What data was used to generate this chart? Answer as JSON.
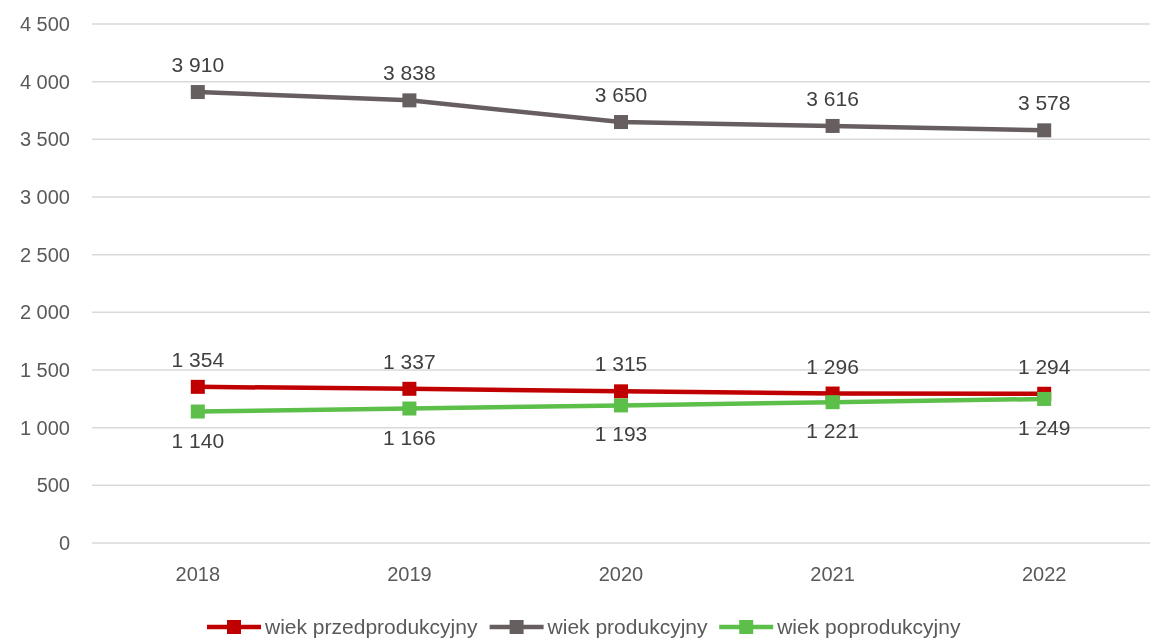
{
  "chart_data": {
    "type": "line",
    "categories": [
      "2018",
      "2019",
      "2020",
      "2021",
      "2022"
    ],
    "series": [
      {
        "name": "wiek przedprodukcyjny",
        "color": "#c00000",
        "values": [
          1354,
          1337,
          1315,
          1296,
          1294
        ],
        "value_labels": [
          "1 354",
          "1 337",
          "1 315",
          "1 296",
          "1 294"
        ]
      },
      {
        "name": "wiek produkcyjny",
        "color": "#675e60",
        "values": [
          3910,
          3838,
          3650,
          3616,
          3578
        ],
        "value_labels": [
          "3 910",
          "3 838",
          "3 650",
          "3 616",
          "3 578"
        ]
      },
      {
        "name": "wiek poprodukcyjny",
        "color": "#5cbf4a",
        "values": [
          1140,
          1166,
          1193,
          1221,
          1249
        ],
        "value_labels": [
          "1 140",
          "1 166",
          "1 193",
          "1 221",
          "1 249"
        ]
      }
    ],
    "ylim": [
      0,
      4500
    ],
    "yticks": [
      0,
      500,
      {
        "value": 1000,
        "label": "1 000"
      },
      {
        "value": 1500,
        "label": "1 500"
      },
      {
        "value": 2000,
        "label": "2 000"
      },
      {
        "value": 2500,
        "label": "2 500"
      },
      {
        "value": 3000,
        "label": "3 000"
      },
      {
        "value": 3500,
        "label": "3 500"
      },
      {
        "value": 4000,
        "label": "4 000"
      },
      {
        "value": 4500,
        "label": "4 500"
      }
    ],
    "grid": "y",
    "legend": "bottom",
    "marker": "square",
    "line_style": "solid"
  }
}
